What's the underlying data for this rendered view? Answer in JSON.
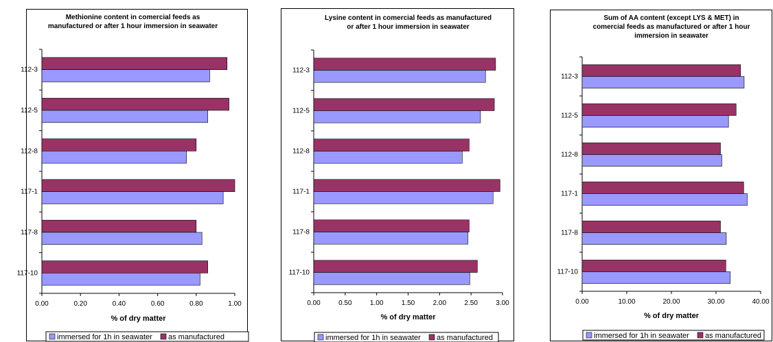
{
  "colors": {
    "immersed": "#9999ff",
    "manufactured": "#993366",
    "bar_stroke": "#000000",
    "axis": "#000000"
  },
  "chart_data": [
    {
      "type": "bar",
      "orientation": "horizontal",
      "title_lines": [
        "Methionine content in comercial feeds as",
        "manufactured or after 1 hour immersion in seawater"
      ],
      "xlabel": "% of dry matter",
      "ylabel": "",
      "categories": [
        "112-3",
        "112-5",
        "112-8",
        "117-1",
        "117-8",
        "117-10"
      ],
      "xlim": [
        0,
        1.0
      ],
      "x_ticks": [
        "0.00",
        "0.20",
        "0.40",
        "0.60",
        "0.80",
        "1.00"
      ],
      "series": [
        {
          "name": "as manufactured",
          "values": [
            0.96,
            0.97,
            0.8,
            1.0,
            0.8,
            0.86
          ]
        },
        {
          "name": "immersed for 1h in seawater",
          "values": [
            0.87,
            0.86,
            0.75,
            0.94,
            0.83,
            0.82
          ]
        }
      ],
      "legend_position": "bottom",
      "grid": false
    },
    {
      "type": "bar",
      "orientation": "horizontal",
      "title_lines": [
        "Lysine content in comercial feeds as manufactured",
        "or after 1 hour immersion in seawater"
      ],
      "xlabel": "% of dry matter",
      "ylabel": "",
      "categories": [
        "112-3",
        "112-5",
        "112-8",
        "117-1",
        "117-8",
        "117-10"
      ],
      "xlim": [
        0,
        3.0
      ],
      "x_ticks": [
        "0.00",
        "0.50",
        "1.00",
        "1.50",
        "2.00",
        "2.50",
        "3.00"
      ],
      "series": [
        {
          "name": "as manufactured",
          "values": [
            2.89,
            2.87,
            2.47,
            2.96,
            2.47,
            2.6
          ]
        },
        {
          "name": "immersed for 1h in seawater",
          "values": [
            2.73,
            2.65,
            2.36,
            2.85,
            2.45,
            2.48
          ]
        }
      ],
      "legend_position": "bottom",
      "grid": false
    },
    {
      "type": "bar",
      "orientation": "horizontal",
      "title_lines": [
        "Sum of AA content (except LYS & MET)  in",
        "comercial feeds as manufactured or after 1 hour",
        "immersion in seawater"
      ],
      "xlabel": "% of dry matter",
      "ylabel": "",
      "categories": [
        "112-3",
        "112-5",
        "112-8",
        "117-1",
        "117-8",
        "117-10"
      ],
      "xlim": [
        0,
        40.0
      ],
      "x_ticks": [
        "0.00",
        "10.00",
        "20.00",
        "30.00",
        "40.00"
      ],
      "series": [
        {
          "name": "as manufactured",
          "values": [
            35.5,
            34.5,
            31.0,
            36.2,
            31.0,
            32.2
          ]
        },
        {
          "name": "immersed for 1h in seawater",
          "values": [
            36.3,
            32.8,
            31.3,
            37.0,
            32.3,
            33.2
          ]
        }
      ],
      "legend_position": "bottom",
      "grid": false
    }
  ],
  "legend": {
    "immersed_label": "immersed for 1h in seawater",
    "manufactured_label": "as manufactured"
  }
}
